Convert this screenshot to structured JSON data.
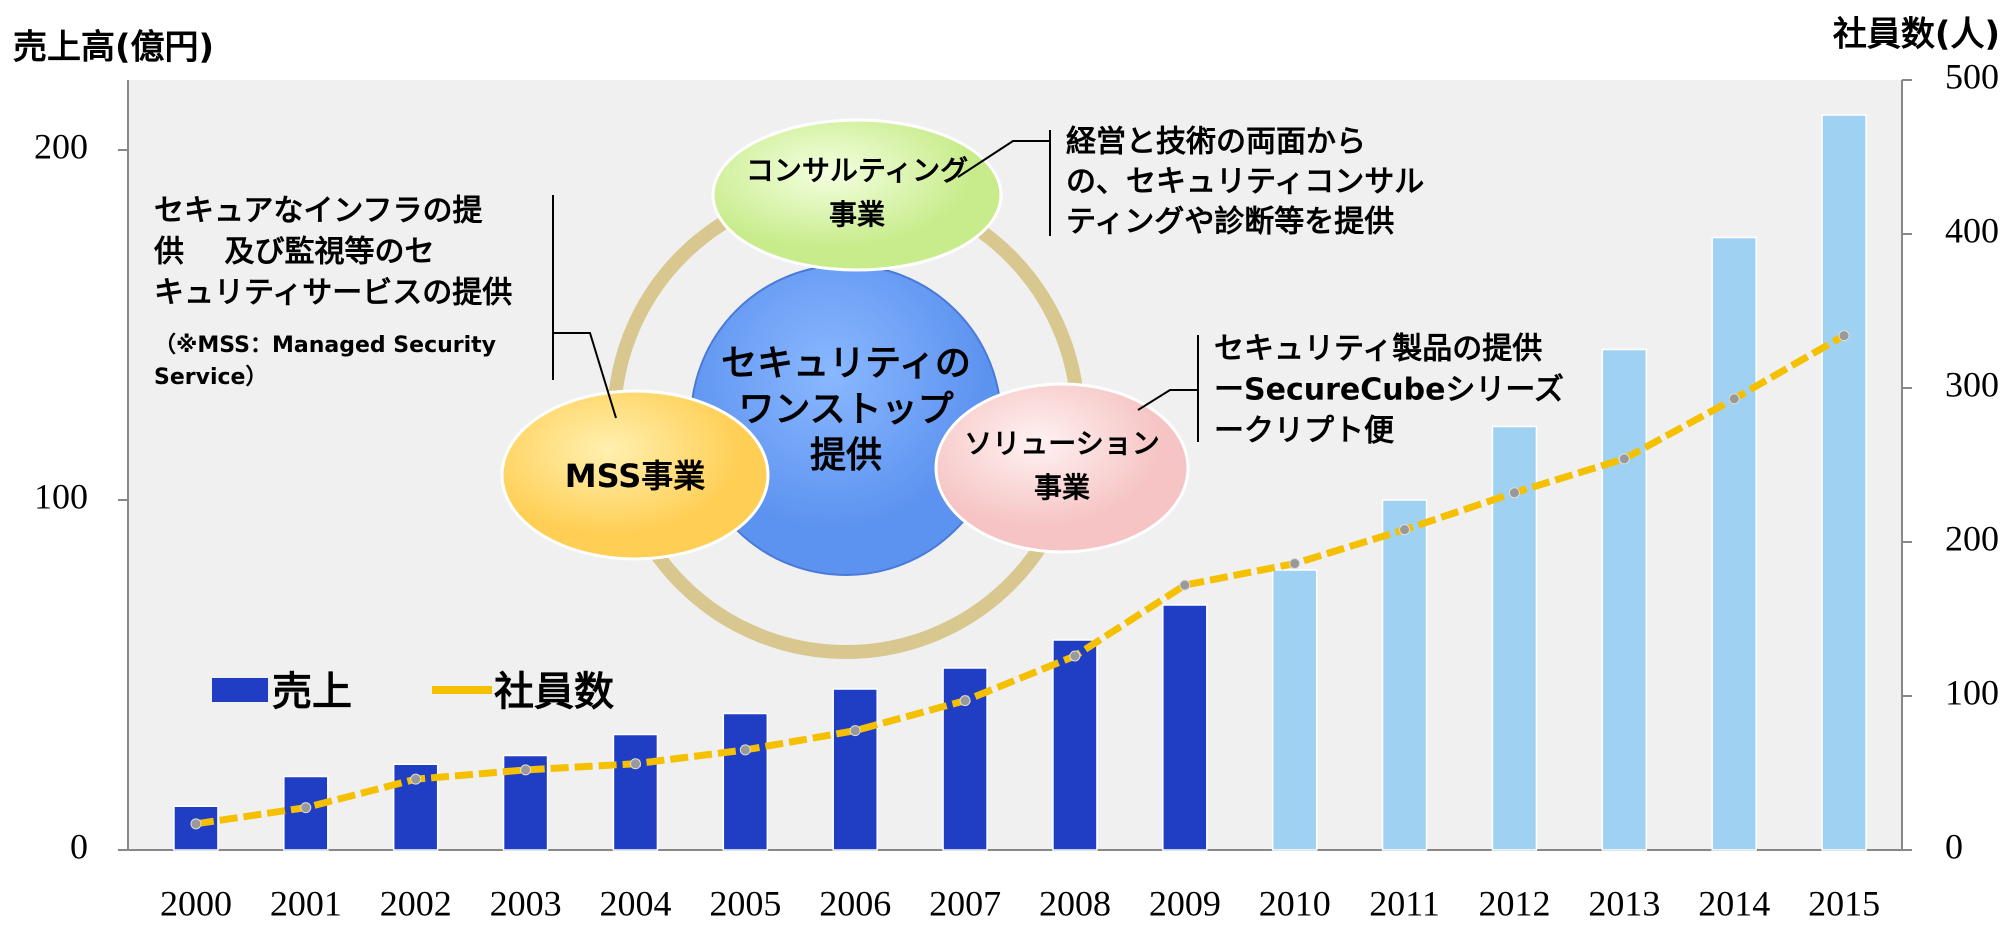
{
  "chart_data": {
    "type": "bar_line",
    "y_label": "売上高(億円)",
    "y2_label": "社員数(人)",
    "categories": [
      "2000",
      "2001",
      "2002",
      "2003",
      "2004",
      "2005",
      "2006",
      "2007",
      "2008",
      "2009",
      "2010",
      "2011",
      "2012",
      "2013",
      "2014",
      "2015"
    ],
    "series": [
      {
        "name": "売上",
        "type": "bar",
        "color": "#1f3ec4",
        "colors": [
          "#1f3ec4",
          "#1f3ec4",
          "#1f3ec4",
          "#1f3ec4",
          "#1f3ec4",
          "#1f3ec4",
          "#1f3ec4",
          "#1f3ec4",
          "#1f3ec4",
          "#1f3ec4",
          "#9fd2f2",
          "#9fd2f2",
          "#9fd2f2",
          "#9fd2f2",
          "#9fd2f2",
          "#9fd2f2"
        ],
        "values": [
          12.5,
          21,
          24.5,
          27,
          33,
          39,
          46,
          52,
          60,
          70,
          80,
          100,
          121,
          143,
          175,
          210
        ]
      },
      {
        "name": "社員数",
        "type": "line",
        "axis": "y2",
        "color": "#f5c000",
        "values": [
          17,
          27.5,
          46,
          52,
          56,
          65,
          77.5,
          97,
          126,
          172,
          186,
          208,
          232,
          254,
          293,
          334
        ]
      }
    ],
    "ylim": [
      0,
      220
    ],
    "yticks": [
      0,
      100,
      200
    ],
    "y2lim": [
      0,
      500
    ],
    "y2ticks": [
      0,
      100,
      200,
      300,
      400,
      500
    ],
    "grid": false,
    "legend": "lower-left"
  },
  "diagram": {
    "center": [
      "セキュリティの",
      "ワンストップ",
      "提供"
    ],
    "consulting": {
      "label": [
        "コンサルティング",
        "事業"
      ],
      "note": [
        "経営と技術の両面から",
        "の、セキュリティコンサル",
        "ティングや診断等を提供"
      ]
    },
    "mss": {
      "label": [
        "MSS事業"
      ],
      "note": [
        "セキュアなインフラの提",
        "供　 及び監視等のセ",
        "キュリティサービスの提供"
      ],
      "subnote": [
        "（※MSS：Managed Security",
        "Service）"
      ]
    },
    "solution": {
      "label": [
        "ソリューション",
        "事業"
      ],
      "note": [
        "セキュリティ製品の提供",
        "ーSecureCubeシリーズ",
        "ークリプト便"
      ]
    }
  }
}
